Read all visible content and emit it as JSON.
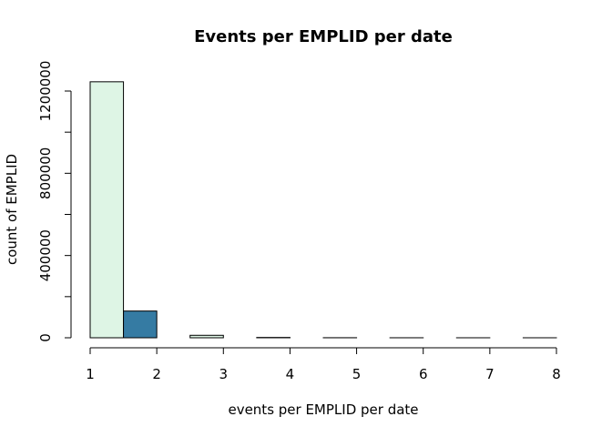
{
  "chart_data": {
    "type": "bar",
    "title": "Events per EMPLID per date",
    "xlabel": "events per EMPLID per date",
    "ylabel": "count of EMPLID",
    "xlim": [
      1,
      8
    ],
    "ylim": [
      0,
      1200000
    ],
    "x_ticks": [
      1,
      2,
      3,
      4,
      5,
      6,
      7,
      8
    ],
    "x_tick_labels": [
      "1",
      "2",
      "3",
      "4",
      "5",
      "6",
      "7",
      "8"
    ],
    "y_ticks": [
      0,
      400000,
      800000,
      1200000
    ],
    "y_tick_labels": [
      "0",
      "400000",
      "800000",
      "1200000"
    ],
    "y_minor_ticks": [
      200000,
      600000,
      1000000
    ],
    "bins": [
      {
        "x0": 1.0,
        "x1": 1.5,
        "value": 1245000,
        "color": "#def5e5"
      },
      {
        "x0": 1.5,
        "x1": 2.0,
        "value": 130000,
        "color": "#357ba3"
      },
      {
        "x0": 2.0,
        "x1": 2.5,
        "value": 0,
        "color": "#357ba3"
      },
      {
        "x0": 2.5,
        "x1": 3.0,
        "value": 12000,
        "color": "#def5e5"
      },
      {
        "x0": 3.0,
        "x1": 3.5,
        "value": 0,
        "color": "#357ba3"
      },
      {
        "x0": 3.5,
        "x1": 4.0,
        "value": 1500,
        "color": "#def5e5"
      },
      {
        "x0": 4.0,
        "x1": 4.5,
        "value": 0,
        "color": "#357ba3"
      },
      {
        "x0": 4.5,
        "x1": 5.0,
        "value": 300,
        "color": "#def5e5"
      },
      {
        "x0": 5.0,
        "x1": 5.5,
        "value": 0,
        "color": "#357ba3"
      },
      {
        "x0": 5.5,
        "x1": 6.0,
        "value": 80,
        "color": "#def5e5"
      },
      {
        "x0": 6.0,
        "x1": 6.5,
        "value": 0,
        "color": "#357ba3"
      },
      {
        "x0": 6.5,
        "x1": 7.0,
        "value": 30,
        "color": "#def5e5"
      },
      {
        "x0": 7.0,
        "x1": 7.5,
        "value": 0,
        "color": "#357ba3"
      },
      {
        "x0": 7.5,
        "x1": 8.0,
        "value": 10,
        "color": "#def5e5"
      }
    ],
    "grid": false
  }
}
